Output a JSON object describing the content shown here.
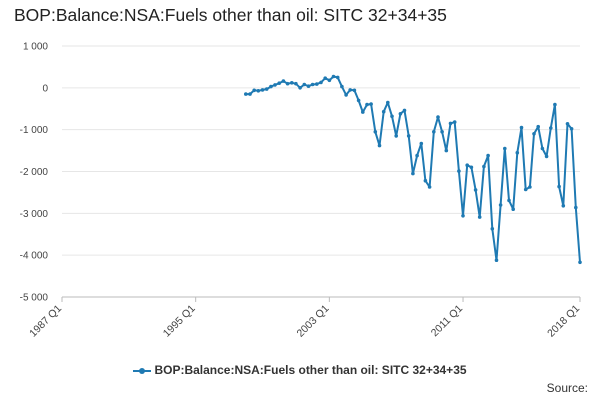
{
  "colors": {
    "series": "#1f7ab3",
    "grid": "#e6e6e6",
    "axis": "#bbbbbb",
    "text": "#333333"
  },
  "source_label": "Source:",
  "chart_data": {
    "type": "line",
    "title": "BOP:Balance:NSA:Fuels other than oil: SITC 32+34+35",
    "xlabel": "",
    "ylabel": "",
    "x_ticks": [
      "1987 Q1",
      "1995 Q1",
      "2003 Q1",
      "2011 Q1",
      "2018 Q1"
    ],
    "y_ticks": [
      "1 000",
      "0",
      "-1 000",
      "-2 000",
      "-3 000",
      "-4 000",
      "-5 000"
    ],
    "ylim": [
      -5000,
      1000
    ],
    "xlim": [
      "1987 Q1",
      "2018 Q1"
    ],
    "grid": "horizontal",
    "legend": "bottom",
    "series": [
      {
        "name": "BOP:Balance:NSA:Fuels other than oil: SITC 32+34+35",
        "x": [
          "1998 Q1",
          "1998 Q2",
          "1998 Q3",
          "1998 Q4",
          "1999 Q1",
          "1999 Q2",
          "1999 Q3",
          "1999 Q4",
          "2000 Q1",
          "2000 Q2",
          "2000 Q3",
          "2000 Q4",
          "2001 Q1",
          "2001 Q2",
          "2001 Q3",
          "2001 Q4",
          "2002 Q1",
          "2002 Q2",
          "2002 Q3",
          "2002 Q4",
          "2003 Q1",
          "2003 Q2",
          "2003 Q3",
          "2003 Q4",
          "2004 Q1",
          "2004 Q2",
          "2004 Q3",
          "2004 Q4",
          "2005 Q1",
          "2005 Q2",
          "2005 Q3",
          "2005 Q4",
          "2006 Q1",
          "2006 Q2",
          "2006 Q3",
          "2006 Q4",
          "2007 Q1",
          "2007 Q2",
          "2007 Q3",
          "2007 Q4",
          "2008 Q1",
          "2008 Q2",
          "2008 Q3",
          "2008 Q4",
          "2009 Q1",
          "2009 Q2",
          "2009 Q3",
          "2009 Q4",
          "2010 Q1",
          "2010 Q2",
          "2010 Q3",
          "2010 Q4",
          "2011 Q1",
          "2011 Q2",
          "2011 Q3",
          "2011 Q4",
          "2012 Q1",
          "2012 Q2",
          "2012 Q3",
          "2012 Q4",
          "2013 Q1",
          "2013 Q2",
          "2013 Q3",
          "2013 Q4",
          "2014 Q1",
          "2014 Q2",
          "2014 Q3",
          "2014 Q4",
          "2015 Q1",
          "2015 Q2",
          "2015 Q3",
          "2015 Q4",
          "2016 Q1",
          "2016 Q2",
          "2016 Q3",
          "2016 Q4",
          "2017 Q1",
          "2017 Q2",
          "2017 Q3",
          "2017 Q4",
          "2018 Q1",
          "2018 Q2"
        ],
        "values": [
          -150,
          -150,
          -60,
          -70,
          -50,
          -30,
          30,
          70,
          110,
          160,
          100,
          120,
          100,
          0,
          80,
          40,
          80,
          90,
          130,
          230,
          180,
          270,
          250,
          30,
          -170,
          -50,
          -60,
          -300,
          -580,
          -400,
          -390,
          -1050,
          -1380,
          -570,
          -350,
          -680,
          -1150,
          -620,
          -540,
          -1150,
          -2050,
          -1620,
          -1330,
          -2220,
          -2370,
          -1050,
          -700,
          -1050,
          -1500,
          -850,
          -820,
          -1990,
          -3060,
          -1850,
          -1900,
          -2440,
          -3090,
          -1880,
          -1620,
          -3370,
          -4120,
          -2800,
          -1450,
          -2690,
          -2900,
          -1550,
          -950,
          -2430,
          -2370,
          -1100,
          -930,
          -1450,
          -1640,
          -960,
          -400,
          -2360,
          -2820,
          -860,
          -980,
          -2860,
          -4170,
          null
        ]
      }
    ]
  }
}
